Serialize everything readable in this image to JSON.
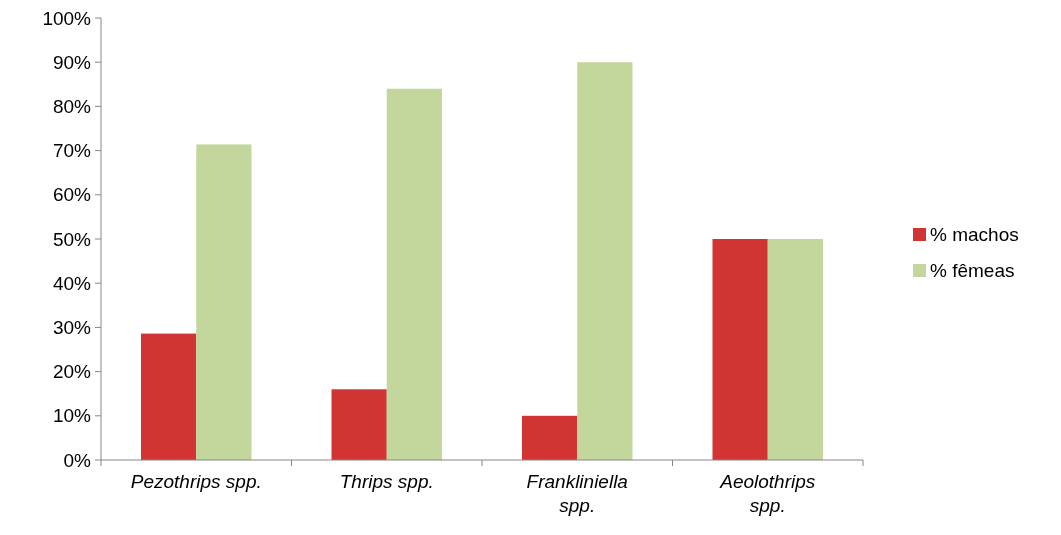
{
  "chart_data": {
    "type": "bar",
    "categories": [
      "Pezothrips spp.",
      "Thrips spp.",
      "Frankliniella spp.",
      "Aeolothrips spp."
    ],
    "series": [
      {
        "name": "% machos",
        "color": "#d03433",
        "values": [
          28.6,
          16,
          10,
          50
        ]
      },
      {
        "name": "% fêmeas",
        "color": "#c3d69b",
        "values": [
          71.4,
          84,
          90,
          50
        ]
      }
    ],
    "ylim": [
      0,
      100
    ],
    "yticks": [
      {
        "value": 0,
        "label": "0%"
      },
      {
        "value": 10,
        "label": "10%"
      },
      {
        "value": 20,
        "label": "20%"
      },
      {
        "value": 30,
        "label": "30%"
      },
      {
        "value": 40,
        "label": "40%"
      },
      {
        "value": 50,
        "label": "50%"
      },
      {
        "value": 60,
        "label": "60%"
      },
      {
        "value": 70,
        "label": "70%"
      },
      {
        "value": 80,
        "label": "80%"
      },
      {
        "value": 90,
        "label": "90%"
      },
      {
        "value": 100,
        "label": "100%"
      }
    ],
    "grid": false,
    "legend": "right"
  }
}
